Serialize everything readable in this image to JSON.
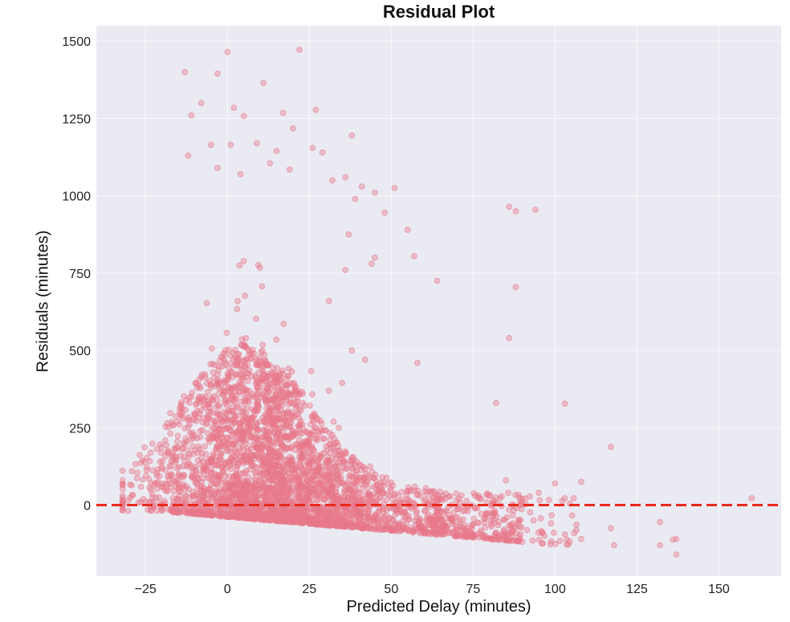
{
  "chart_data": {
    "type": "scatter",
    "title": "Residual Plot",
    "xlabel": "Predicted Delay (minutes)",
    "ylabel": "Residuals (minutes)",
    "xlim": [
      -40,
      169
    ],
    "ylim": [
      -230,
      1550
    ],
    "xticks": [
      -25,
      0,
      25,
      50,
      75,
      100,
      125,
      150
    ],
    "xtick_labels": [
      "−25",
      "0",
      "25",
      "50",
      "75",
      "100",
      "125",
      "150"
    ],
    "yticks": [
      0,
      250,
      500,
      750,
      1000,
      1250,
      1500
    ],
    "ytick_labels": [
      "0",
      "250",
      "500",
      "750",
      "1000",
      "1250",
      "1500"
    ],
    "grid": true,
    "legend": null,
    "background": "#eaeaf2",
    "point_color": "#e8788a",
    "point_alpha": 0.4,
    "reference_line": {
      "y": 0,
      "style": "dashed",
      "color": "#e8291c",
      "width": 2.5
    },
    "dense_cloud": {
      "description": "Dense mass of points centered around x=0-30, residuals from about -50 to +450, tapering to the right with lower bound y = -0.9*x - 35",
      "x_range": [
        -32,
        110
      ],
      "peak_x": 5,
      "approx_points": 9000
    },
    "outliers": [
      [
        -13,
        1400
      ],
      [
        0,
        1465
      ],
      [
        -3,
        1395
      ],
      [
        22,
        1472
      ],
      [
        11,
        1365
      ],
      [
        -8,
        1300
      ],
      [
        2,
        1285
      ],
      [
        -11,
        1260
      ],
      [
        5,
        1258
      ],
      [
        17,
        1268
      ],
      [
        27,
        1278
      ],
      [
        20,
        1218
      ],
      [
        38,
        1195
      ],
      [
        15,
        1145
      ],
      [
        26,
        1155
      ],
      [
        29,
        1140
      ],
      [
        -12,
        1130
      ],
      [
        -5,
        1165
      ],
      [
        1,
        1165
      ],
      [
        9,
        1170
      ],
      [
        -3,
        1090
      ],
      [
        4,
        1070
      ],
      [
        13,
        1105
      ],
      [
        19,
        1085
      ],
      [
        32,
        1050
      ],
      [
        36,
        1060
      ],
      [
        41,
        1030
      ],
      [
        45,
        1010
      ],
      [
        51,
        1025
      ],
      [
        39,
        990
      ],
      [
        48,
        945
      ],
      [
        55,
        890
      ],
      [
        86,
        965
      ],
      [
        88,
        950
      ],
      [
        94,
        955
      ],
      [
        37,
        875
      ],
      [
        45,
        800
      ],
      [
        44,
        780
      ],
      [
        57,
        805
      ],
      [
        64,
        725
      ],
      [
        88,
        705
      ],
      [
        86,
        540
      ],
      [
        31,
        660
      ],
      [
        36,
        760
      ],
      [
        58,
        460
      ],
      [
        38,
        500
      ],
      [
        42,
        470
      ],
      [
        35,
        395
      ],
      [
        82,
        330
      ],
      [
        103,
        328
      ],
      [
        117,
        188
      ],
      [
        160,
        22
      ],
      [
        132,
        -55
      ],
      [
        137,
        -110
      ],
      [
        136,
        -112
      ],
      [
        132,
        -130
      ],
      [
        137,
        -160
      ],
      [
        117,
        -75
      ],
      [
        118,
        -130
      ],
      [
        108,
        -110
      ],
      [
        103,
        -95
      ],
      [
        85,
        80
      ],
      [
        90,
        20
      ],
      [
        95,
        40
      ],
      [
        100,
        70
      ],
      [
        108,
        75
      ]
    ]
  }
}
